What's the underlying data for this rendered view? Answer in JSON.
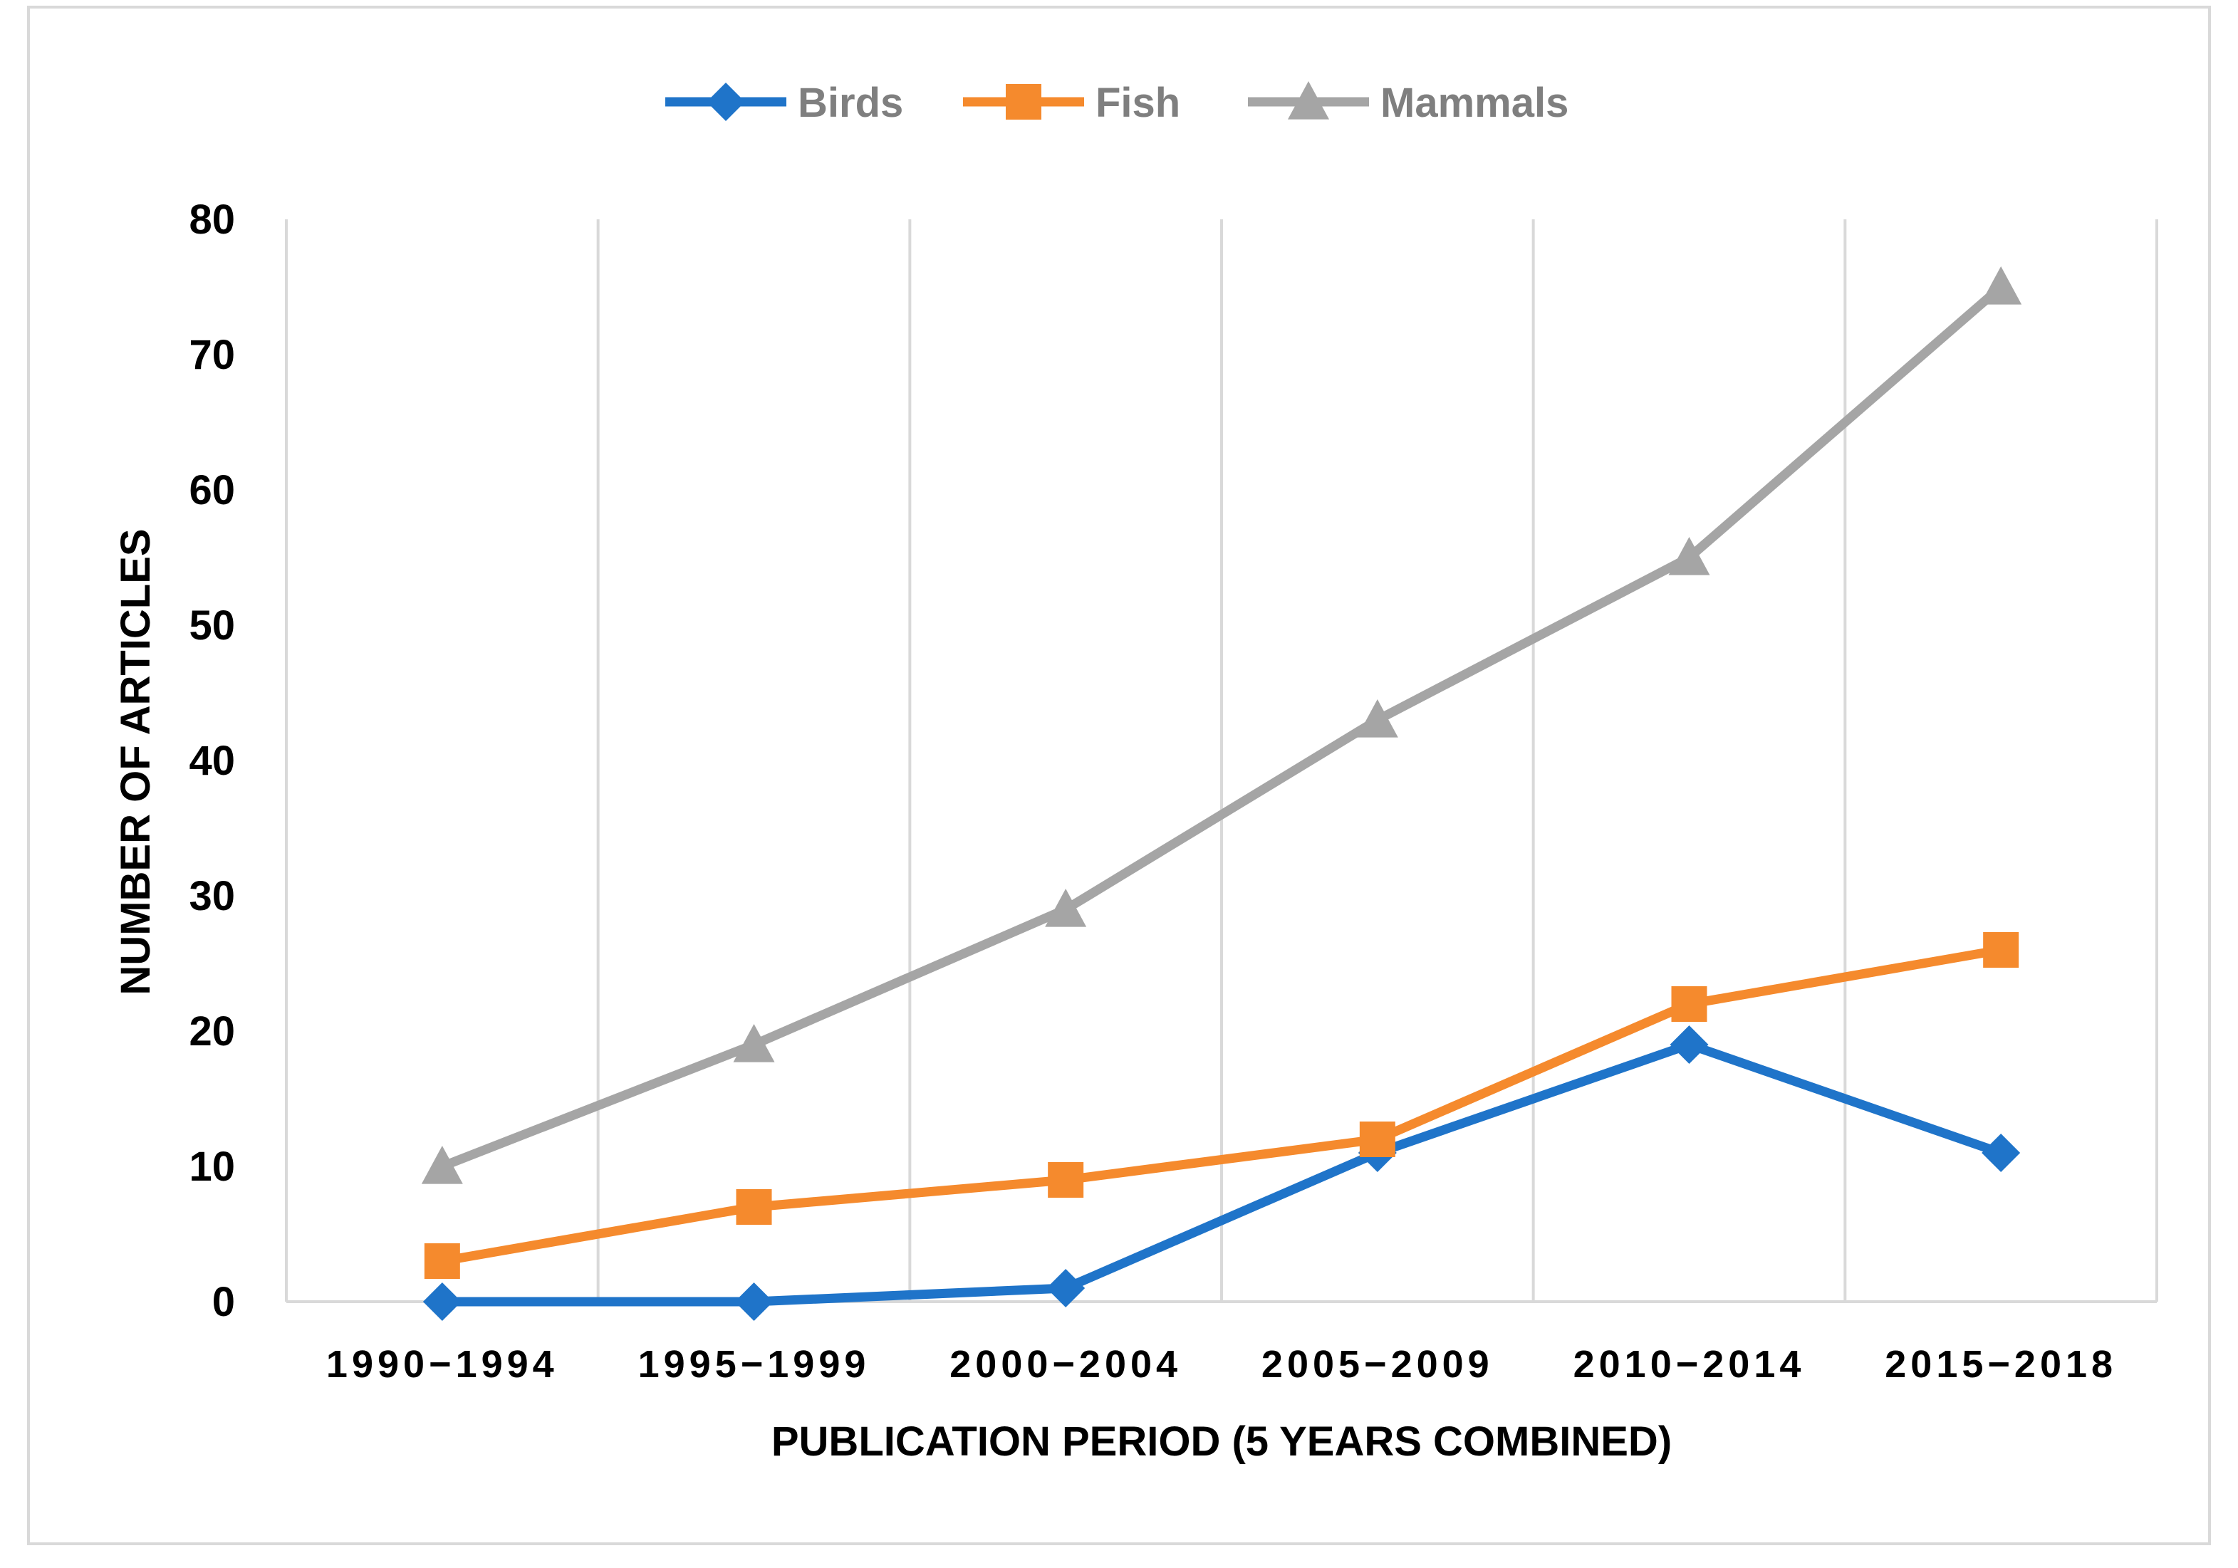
{
  "chart_data": {
    "type": "line",
    "title": "",
    "xlabel": "PUBLICATION PERIOD (5 YEARS COMBINED)",
    "ylabel": "NUMBER OF ARTICLES",
    "categories": [
      "1990−1994",
      "1995−1999",
      "2000−2004",
      "2005−2009",
      "2010−2014",
      "2015−2018"
    ],
    "ylim": [
      0,
      80
    ],
    "yticks": [
      0,
      10,
      20,
      30,
      40,
      50,
      60,
      70,
      80
    ],
    "grid": "vertical",
    "legend_position": "top",
    "series": [
      {
        "name": "Birds",
        "values": [
          0,
          0,
          1,
          11,
          19,
          11
        ],
        "color": "#1f74c9",
        "marker": "diamond"
      },
      {
        "name": "Fish",
        "values": [
          3,
          7,
          9,
          12,
          22,
          26
        ],
        "color": "#f58a2d",
        "marker": "square"
      },
      {
        "name": "Mammals",
        "values": [
          10,
          19,
          29,
          43,
          55,
          75
        ],
        "color": "#a5a5a5",
        "marker": "triangle"
      }
    ]
  }
}
